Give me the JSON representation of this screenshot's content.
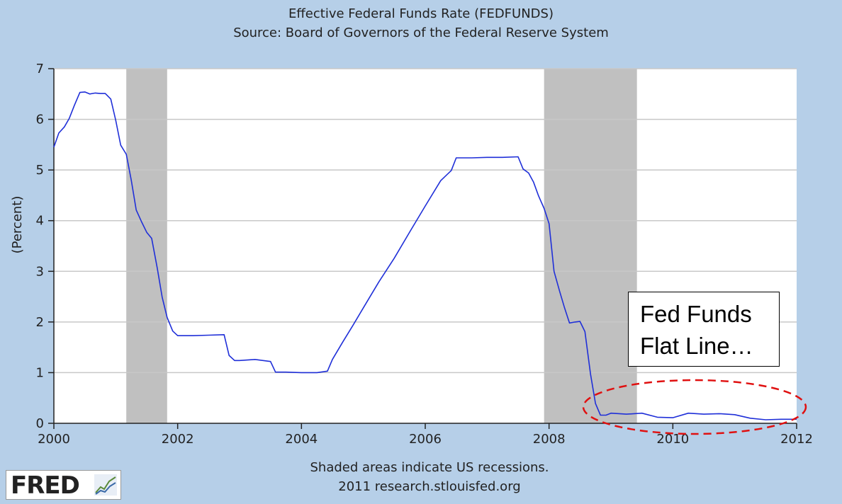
{
  "chart_data": {
    "type": "line",
    "title": "Effective Federal Funds Rate (FEDFUNDS)",
    "subtitle": "Source: Board of Governors of the Federal Reserve System",
    "xlabel": "",
    "ylabel": "(Percent)",
    "xlim": [
      2000,
      2012
    ],
    "ylim": [
      0,
      7
    ],
    "x_ticks": [
      "2000",
      "2002",
      "2004",
      "2006",
      "2008",
      "2010",
      "2012"
    ],
    "y_ticks": [
      "0",
      "1",
      "2",
      "3",
      "4",
      "5",
      "6",
      "7"
    ],
    "grid": true,
    "line_color": "#1f2fd8",
    "recessions": [
      {
        "start": 2001.17,
        "end": 2001.83
      },
      {
        "start": 2007.92,
        "end": 2009.42
      }
    ],
    "recession_color": "#c0c0c0",
    "series": [
      {
        "x": [
          2000.0,
          2000.08,
          2000.17,
          2000.25,
          2000.33,
          2000.42,
          2000.5,
          2000.58,
          2000.67,
          2000.75,
          2000.83,
          2000.92,
          2001.0,
          2001.08,
          2001.17,
          2001.25,
          2001.33,
          2001.42,
          2001.5,
          2001.58,
          2001.67,
          2001.75,
          2001.83,
          2001.92,
          2002.0,
          2002.25,
          2002.5,
          2002.75,
          2002.83,
          2002.92,
          2003.0,
          2003.25,
          2003.5,
          2003.58,
          2003.75,
          2004.0,
          2004.25,
          2004.42,
          2004.5,
          2004.67,
          2004.83,
          2005.0,
          2005.25,
          2005.5,
          2005.75,
          2006.0,
          2006.25,
          2006.42,
          2006.5,
          2006.75,
          2007.0,
          2007.25,
          2007.5,
          2007.58,
          2007.67,
          2007.75,
          2007.83,
          2007.92,
          2008.0,
          2008.08,
          2008.17,
          2008.25,
          2008.33,
          2008.42,
          2008.5,
          2008.58,
          2008.67,
          2008.75,
          2008.83,
          2008.92,
          2009.0,
          2009.25,
          2009.5,
          2009.75,
          2010.0,
          2010.25,
          2010.5,
          2010.75,
          2011.0,
          2011.25,
          2011.5,
          2011.75,
          2012.0
        ],
        "values": [
          5.45,
          5.73,
          5.85,
          6.02,
          6.27,
          6.53,
          6.54,
          6.5,
          6.52,
          6.51,
          6.51,
          6.4,
          5.98,
          5.49,
          5.31,
          4.8,
          4.21,
          3.97,
          3.77,
          3.65,
          3.07,
          2.49,
          2.09,
          1.82,
          1.73,
          1.73,
          1.74,
          1.75,
          1.34,
          1.24,
          1.24,
          1.26,
          1.22,
          1.01,
          1.01,
          1.0,
          1.0,
          1.03,
          1.26,
          1.61,
          1.93,
          2.28,
          2.79,
          3.26,
          3.78,
          4.29,
          4.79,
          4.99,
          5.24,
          5.24,
          5.25,
          5.25,
          5.26,
          5.02,
          4.94,
          4.76,
          4.49,
          4.24,
          3.94,
          3.0,
          2.61,
          2.28,
          1.98,
          2.0,
          2.01,
          1.81,
          0.97,
          0.39,
          0.16,
          0.16,
          0.2,
          0.18,
          0.2,
          0.12,
          0.11,
          0.2,
          0.18,
          0.19,
          0.17,
          0.1,
          0.07,
          0.08,
          0.08
        ]
      }
    ]
  },
  "footer": {
    "line1": "Shaded areas indicate US recessions.",
    "line2": "2011 research.stlouisfed.org",
    "logo": "FRED",
    "logo_icon": "line-chart-icon"
  },
  "annotation": {
    "line1": "Fed Funds",
    "line2": "Flat Line…",
    "ellipse_color": "#e01010"
  },
  "colors": {
    "background": "#b6cfe8",
    "plot_bg": "#ffffff",
    "gridline": "#c8c8c8"
  }
}
